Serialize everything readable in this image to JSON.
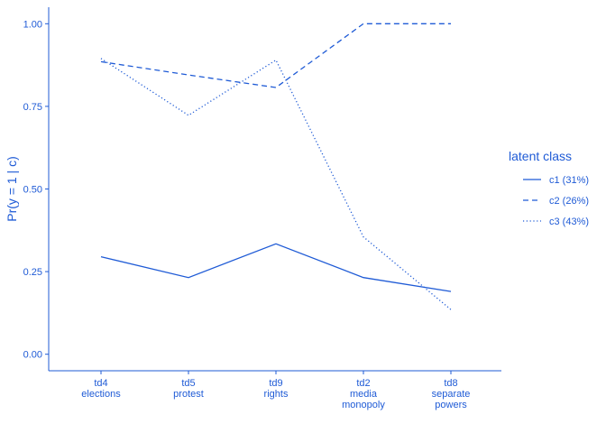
{
  "chart_data": {
    "type": "line",
    "categories": [
      [
        "td4",
        "elections"
      ],
      [
        "td5",
        "protest"
      ],
      [
        "td9",
        "rights"
      ],
      [
        "td2",
        "media",
        "monopoly"
      ],
      [
        "td8",
        "separate",
        "powers"
      ]
    ],
    "ylabel": "Pr(y = 1 | c)",
    "xlabel": "",
    "title": "",
    "ylim": [
      -0.05,
      1.05
    ],
    "yticks": [
      "0.00",
      "0.25",
      "0.50",
      "0.75",
      "1.00"
    ],
    "legend": {
      "title": "latent class",
      "position": "right"
    },
    "series": [
      {
        "name": "c1 (31%)",
        "style": "solid",
        "values": [
          0.295,
          0.232,
          0.334,
          0.232,
          0.19
        ]
      },
      {
        "name": "c2 (26%)",
        "style": "dashed",
        "values": [
          0.885,
          0.845,
          0.807,
          1.0,
          1.0
        ]
      },
      {
        "name": "c3 (43%)",
        "style": "dotted",
        "values": [
          0.895,
          0.723,
          0.89,
          0.355,
          0.135
        ]
      }
    ],
    "color": "#1f5bd6",
    "grid": false
  }
}
